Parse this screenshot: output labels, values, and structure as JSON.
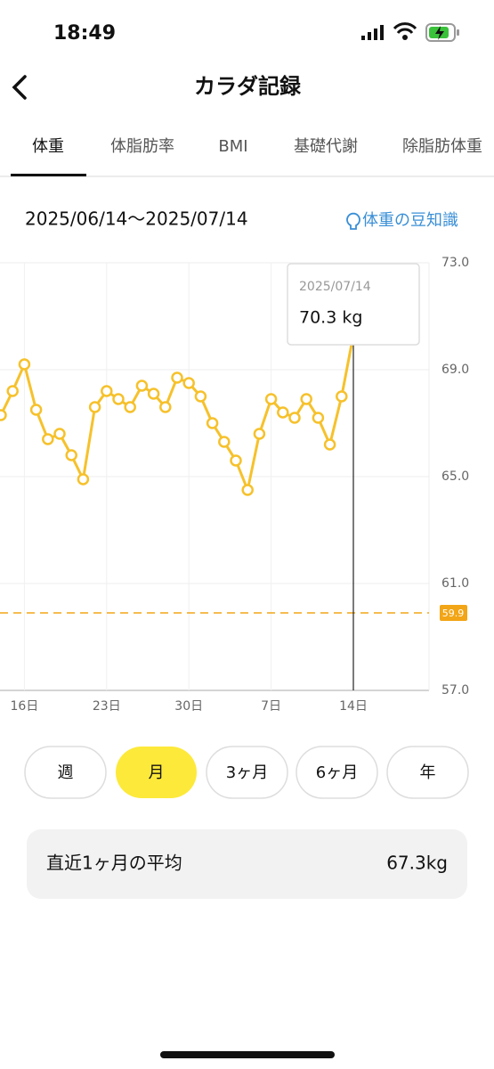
{
  "status_bar": {
    "time": "18:49"
  },
  "header": {
    "title": "カラダ記録"
  },
  "tabs": [
    "体重",
    "体脂肪率",
    "BMI",
    "基礎代謝",
    "除脂肪体重"
  ],
  "date_range": "2025/06/14〜2025/07/14",
  "info_link": "体重の豆知識",
  "chart_data": {
    "type": "line",
    "categories": [
      null,
      null,
      "16日",
      null,
      null,
      null,
      null,
      null,
      null,
      "23日",
      null,
      null,
      null,
      null,
      null,
      null,
      "30日",
      null,
      null,
      null,
      null,
      null,
      null,
      "7日",
      null,
      null,
      null,
      null,
      null,
      null,
      "14日"
    ],
    "values": [
      67.3,
      68.2,
      69.2,
      67.5,
      66.4,
      66.6,
      65.8,
      64.9,
      67.6,
      68.2,
      67.9,
      67.6,
      68.4,
      68.1,
      67.6,
      68.7,
      68.5,
      68.0,
      67.0,
      66.3,
      65.6,
      64.5,
      66.6,
      67.9,
      67.4,
      67.2,
      67.9,
      67.2,
      66.2,
      68.0,
      70.3
    ],
    "color": "#f6c12b",
    "markers": true,
    "ylim": [
      57,
      73
    ],
    "yticks": [
      {
        "value": 57,
        "label": "57.0"
      },
      {
        "value": 61,
        "label": "61.0"
      },
      {
        "value": 65,
        "label": "65.0"
      },
      {
        "value": 69,
        "label": "69.0"
      },
      {
        "value": 73,
        "label": "73.0"
      }
    ],
    "grid": true,
    "goal_line": {
      "value": 59.9,
      "color": "#f2a516"
    },
    "tooltip": {
      "date": "2025/07/14",
      "label": "70.3 kg"
    }
  },
  "period_buttons": [
    "週",
    "月",
    "3ヶ月",
    "6ヶ月",
    "年"
  ],
  "summary": {
    "label": "直近1ヶ月の平均",
    "value": "67.3kg"
  }
}
